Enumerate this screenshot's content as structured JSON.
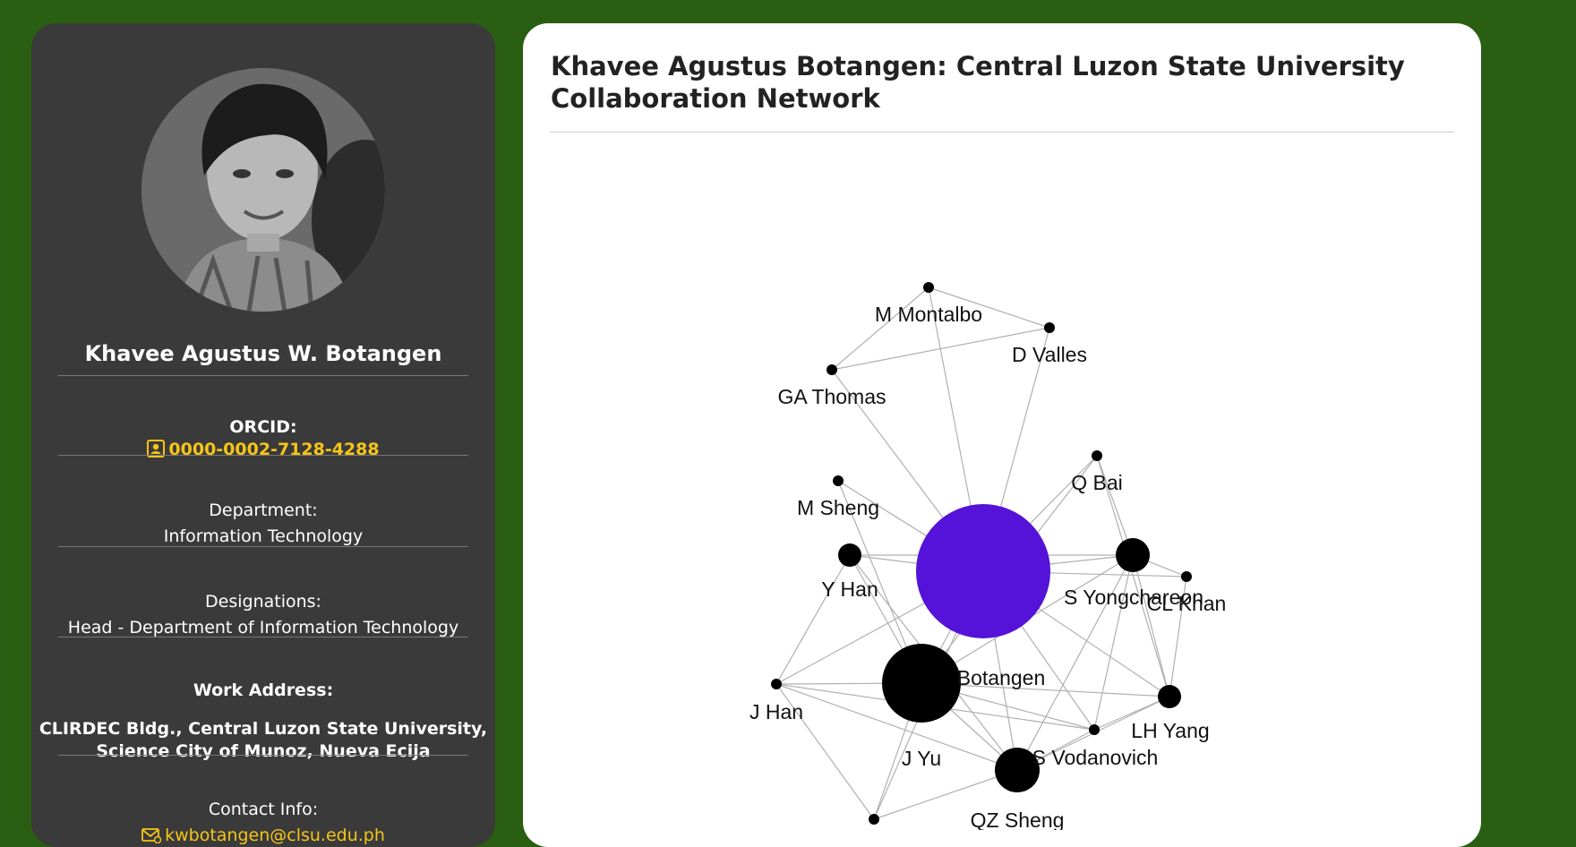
{
  "profile": {
    "name": "Khavee Agustus W. Botangen",
    "orcid_label": "ORCID:",
    "orcid_value": "0000-0002-7128-4288",
    "department_label": "Department:",
    "department_value": "Information Technology",
    "designations_label": "Designations:",
    "designations_value": "Head - Department of Information Technology",
    "work_address_label": "Work Address:",
    "work_address_line1": "CLIRDEC Bldg., Central Luzon State University,",
    "work_address_line2": "Science City of Munoz, Nueva Ecija",
    "contact_label": "Contact Info:",
    "contact_email": "kwbotangen@clsu.edu.ph",
    "icons": [
      "id-badge-icon",
      "envelope-icon"
    ],
    "accent_color": "#f5c518"
  },
  "main": {
    "title": "Khavee Agustus Botangen: Central Luzon State University Collaboration Network"
  },
  "network": {
    "center_color": "#5512d8",
    "node_color": "#000000",
    "nodes": [
      {
        "id": "center",
        "label": "",
        "size": "xl",
        "color": "center"
      },
      {
        "id": "botangen",
        "label": "Botangen",
        "size": "lg"
      },
      {
        "id": "vodanovich",
        "label": "S Vodanovich",
        "size": "md"
      },
      {
        "id": "yongchareon",
        "label": "S Yongchareon",
        "size": "sm"
      },
      {
        "id": "yhan",
        "label": "Y Han",
        "size": "xs"
      },
      {
        "id": "lhyang",
        "label": "LH Yang",
        "size": "xs"
      },
      {
        "id": "montalbo",
        "label": "M Montalbo",
        "size": "dot"
      },
      {
        "id": "valles",
        "label": "D Valles",
        "size": "dot"
      },
      {
        "id": "thomas",
        "label": "GA Thomas",
        "size": "dot"
      },
      {
        "id": "qbai",
        "label": "Q Bai",
        "size": "dot"
      },
      {
        "id": "msheng",
        "label": "M Sheng",
        "size": "dot"
      },
      {
        "id": "clkhan",
        "label": "CL Khan",
        "size": "dot"
      },
      {
        "id": "jhan",
        "label": "J Han",
        "size": "dot"
      },
      {
        "id": "jyu",
        "label": "J Yu",
        "size": "dot"
      },
      {
        "id": "qzsheng",
        "label": "QZ Sheng",
        "size": "dot"
      }
    ],
    "edges": [
      [
        "montalbo",
        "valles"
      ],
      [
        "montalbo",
        "thomas"
      ],
      [
        "thomas",
        "valles"
      ],
      [
        "montalbo",
        "center"
      ],
      [
        "valles",
        "center"
      ],
      [
        "thomas",
        "center"
      ],
      [
        "msheng",
        "center"
      ],
      [
        "msheng",
        "botangen"
      ],
      [
        "qbai",
        "center"
      ],
      [
        "qbai",
        "yongchareon"
      ],
      [
        "qbai",
        "lhyang"
      ],
      [
        "qbai",
        "botangen"
      ],
      [
        "yhan",
        "center"
      ],
      [
        "yhan",
        "botangen"
      ],
      [
        "yhan",
        "yongchareon"
      ],
      [
        "yhan",
        "jhan"
      ],
      [
        "yhan",
        "vodanovich"
      ],
      [
        "yongchareon",
        "center"
      ],
      [
        "yongchareon",
        "botangen"
      ],
      [
        "yongchareon",
        "vodanovich"
      ],
      [
        "yongchareon",
        "jyu"
      ],
      [
        "yongchareon",
        "lhyang"
      ],
      [
        "yongchareon",
        "clkhan"
      ],
      [
        "clkhan",
        "lhyang"
      ],
      [
        "clkhan",
        "center"
      ],
      [
        "center",
        "botangen"
      ],
      [
        "center",
        "vodanovich"
      ],
      [
        "center",
        "jyu"
      ],
      [
        "center",
        "lhyang"
      ],
      [
        "center",
        "jhan"
      ],
      [
        "center",
        "qzsheng"
      ],
      [
        "botangen",
        "vodanovich"
      ],
      [
        "botangen",
        "jhan"
      ],
      [
        "botangen",
        "jyu"
      ],
      [
        "botangen",
        "lhyang"
      ],
      [
        "botangen",
        "qzsheng"
      ],
      [
        "jhan",
        "jyu"
      ],
      [
        "jhan",
        "vodanovich"
      ],
      [
        "jhan",
        "qzsheng"
      ],
      [
        "vodanovich",
        "jyu"
      ],
      [
        "vodanovich",
        "lhyang"
      ],
      [
        "vodanovich",
        "qzsheng"
      ],
      [
        "jyu",
        "lhyang"
      ]
    ]
  }
}
